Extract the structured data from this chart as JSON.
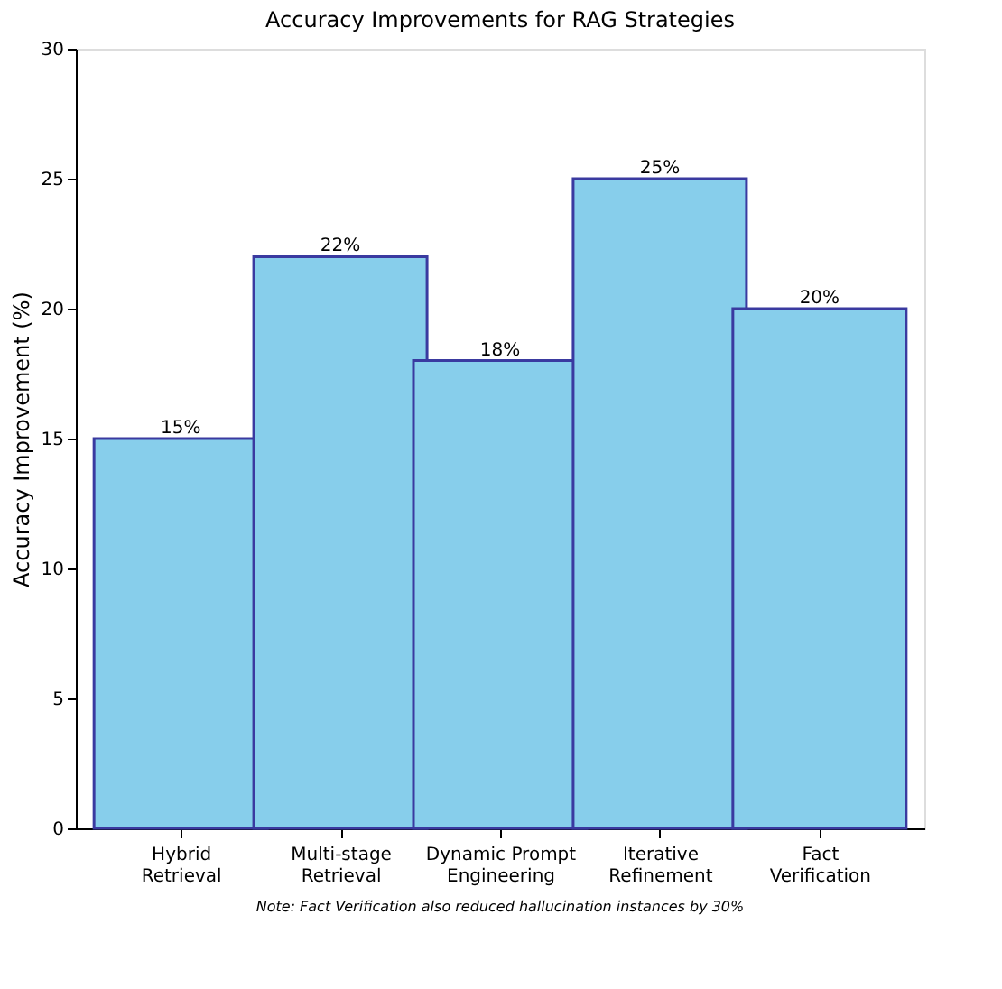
{
  "chart_data": {
    "type": "bar",
    "title": "Accuracy Improvements for RAG Strategies",
    "ylabel": "Accuracy Improvement (%)",
    "categories": [
      "Hybrid\nRetrieval",
      "Multi-stage\nRetrieval",
      "Dynamic Prompt\nEngineering",
      "Iterative\nRefinement",
      "Fact\nVerification"
    ],
    "values": [
      15,
      22,
      18,
      25,
      20
    ],
    "color": "#87ceeb",
    "value_labels": [
      "15%",
      "22%",
      "18%",
      "25%",
      "20%"
    ],
    "ylim": [
      0,
      30
    ],
    "yticks": [
      0,
      5,
      10,
      15,
      20,
      25,
      30
    ],
    "grid": false,
    "annotations": [
      "Note: Fact Verification also reduced hallucination instances by 30%"
    ]
  }
}
